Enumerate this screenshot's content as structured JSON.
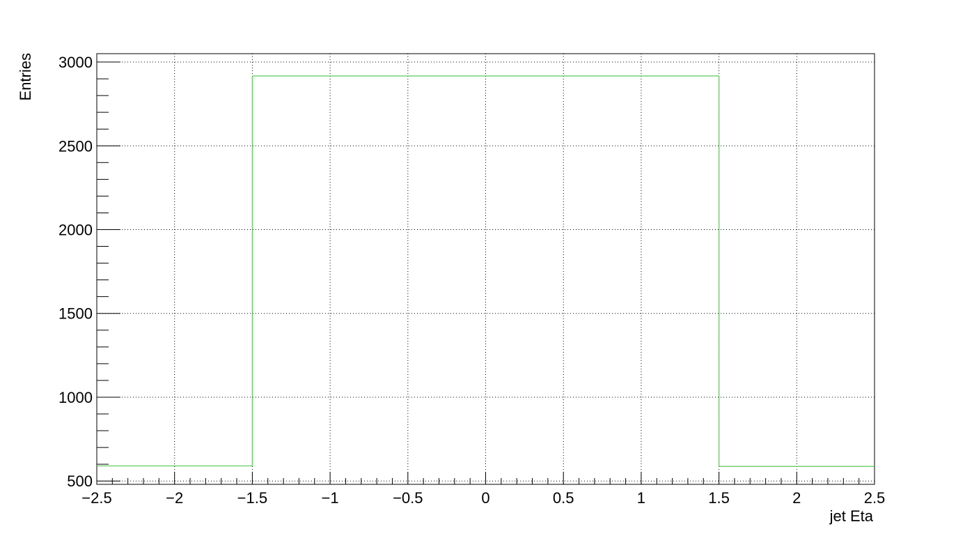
{
  "chart_data": {
    "type": "histogram",
    "xlabel": "jet Eta",
    "ylabel": "Entries",
    "xlim": [
      -2.5,
      2.5
    ],
    "ylim": [
      480,
      3050
    ],
    "grid": true,
    "bin_edges": [
      -2.5,
      -1.5,
      1.5,
      2.5
    ],
    "values": [
      590,
      2917,
      587
    ],
    "series": [
      {
        "color": "#5ac85a"
      }
    ],
    "x_ticks": [
      -2.5,
      -2,
      -1.5,
      -1,
      -0.5,
      0,
      0.5,
      1,
      1.5,
      2,
      2.5
    ],
    "x_tick_labels": [
      "−2.5",
      "−2",
      "−1.5",
      "−1",
      "−0.5",
      "0",
      "0.5",
      "1",
      "1.5",
      "2",
      "2.5"
    ],
    "y_ticks": [
      500,
      1000,
      1500,
      2000,
      2500,
      3000
    ],
    "y_tick_labels": [
      "500",
      "1000",
      "1500",
      "2000",
      "2500",
      "3000"
    ]
  }
}
